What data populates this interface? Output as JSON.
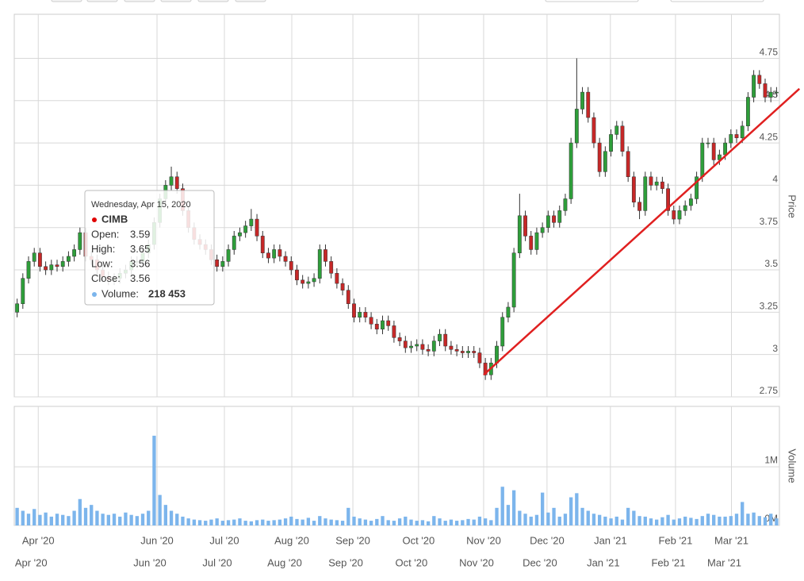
{
  "chart_data": {
    "type": "candlestick",
    "tooltip": {
      "date": "Wednesday, Apr 15, 2020",
      "name": "CIMB",
      "rows": [
        {
          "label": "Open:",
          "value": 3.59
        },
        {
          "label": "High:",
          "value": 3.65
        },
        {
          "label": "Low:",
          "value": 3.56
        },
        {
          "label": "Close:",
          "value": 3.56
        }
      ],
      "volume_label": "Volume:",
      "volume": {
        "value": 218453,
        "label": "218 453"
      }
    },
    "y_title": "Price",
    "y2_title": "Volume",
    "xlim": [
      -0.5,
      133.5
    ],
    "xticks": [
      {
        "value": 3.7,
        "label": "Apr '20"
      },
      {
        "value": 24.5,
        "label": "Jun '20"
      },
      {
        "value": 36.3,
        "label": "Jul '20"
      },
      {
        "value": 48.1,
        "label": "Aug '20"
      },
      {
        "value": 58.8,
        "label": "Sep '20"
      },
      {
        "value": 70.3,
        "label": "Oct '20"
      },
      {
        "value": 81.7,
        "label": "Nov '20"
      },
      {
        "value": 92.8,
        "label": "Dec '20"
      },
      {
        "value": 103.9,
        "label": "Jan '21"
      },
      {
        "value": 115.3,
        "label": "Feb '21"
      },
      {
        "value": 125.1,
        "label": "Mar '21"
      }
    ],
    "ylim": [
      2.75,
      5.01
    ],
    "yticks": [
      2.75,
      3,
      3.25,
      3.5,
      3.75,
      4,
      4.25,
      4.5,
      4.75
    ],
    "y2lim": [
      0,
      2030000
    ],
    "y2ticks": [
      {
        "value": 0,
        "label": "0M"
      },
      {
        "value": 1000000,
        "label": "1M"
      }
    ],
    "up_color": "#2e9e3a",
    "down_color": "#c62828",
    "volume_color": "#7cb5ec",
    "trend_color": "#e02020",
    "open": [
      3.25,
      3.3,
      3.45,
      3.55,
      3.6,
      3.52,
      3.5,
      3.53,
      3.52,
      3.55,
      3.58,
      3.62,
      3.72,
      3.58,
      3.56,
      3.5,
      3.46,
      3.44,
      3.45,
      3.48,
      3.5,
      3.55,
      3.55,
      3.6,
      3.65,
      3.78,
      3.92,
      4.0,
      4.05,
      3.98,
      3.85,
      3.75,
      3.68,
      3.65,
      3.62,
      3.56,
      3.52,
      3.55,
      3.62,
      3.7,
      3.72,
      3.76,
      3.8,
      3.7,
      3.6,
      3.57,
      3.62,
      3.58,
      3.55,
      3.5,
      3.44,
      3.42,
      3.43,
      3.45,
      3.62,
      3.55,
      3.48,
      3.42,
      3.38,
      3.3,
      3.22,
      3.25,
      3.22,
      3.18,
      3.15,
      3.2,
      3.17,
      3.1,
      3.08,
      3.04,
      3.05,
      3.06,
      3.03,
      3.02,
      3.08,
      3.12,
      3.05,
      3.03,
      3.02,
      3.01,
      3.02,
      3.01,
      2.95,
      2.88,
      2.95,
      3.05,
      3.22,
      3.28,
      3.6,
      3.82,
      3.7,
      3.62,
      3.72,
      3.75,
      3.82,
      3.78,
      3.85,
      3.92,
      4.25,
      4.45,
      4.55,
      4.4,
      4.25,
      4.08,
      4.2,
      4.3,
      4.35,
      4.2,
      4.05,
      3.9,
      3.85,
      4.05,
      4.0,
      4.02,
      3.98,
      3.85,
      3.8,
      3.85,
      3.88,
      3.92,
      4.05,
      4.25,
      4.25,
      4.15,
      4.18,
      4.25,
      4.3,
      4.28,
      4.35,
      4.52,
      4.65,
      4.6,
      4.52,
      4.55
    ],
    "high": [
      3.33,
      3.48,
      3.58,
      3.63,
      3.63,
      3.55,
      3.56,
      3.56,
      3.58,
      3.61,
      3.65,
      3.75,
      3.75,
      3.61,
      3.59,
      3.53,
      3.49,
      3.48,
      3.51,
      3.53,
      3.58,
      3.58,
      3.63,
      3.68,
      3.81,
      3.95,
      4.03,
      4.11,
      4.08,
      4.01,
      3.88,
      3.78,
      3.71,
      3.68,
      3.65,
      3.59,
      3.58,
      3.65,
      3.73,
      3.75,
      3.79,
      3.86,
      3.83,
      3.73,
      3.63,
      3.65,
      3.65,
      3.61,
      3.58,
      3.53,
      3.47,
      3.46,
      3.48,
      3.65,
      3.65,
      3.58,
      3.51,
      3.45,
      3.41,
      3.33,
      3.28,
      3.28,
      3.25,
      3.21,
      3.23,
      3.23,
      3.2,
      3.13,
      3.11,
      3.08,
      3.09,
      3.09,
      3.06,
      3.11,
      3.15,
      3.15,
      3.08,
      3.06,
      3.05,
      3.05,
      3.05,
      3.04,
      2.98,
      2.98,
      3.08,
      3.25,
      3.31,
      3.63,
      3.95,
      3.85,
      3.73,
      3.75,
      3.78,
      3.85,
      3.85,
      3.88,
      3.95,
      4.28,
      4.75,
      4.58,
      4.58,
      4.43,
      4.28,
      4.23,
      4.33,
      4.38,
      4.38,
      4.23,
      4.08,
      3.93,
      4.08,
      4.08,
      4.05,
      4.05,
      4.01,
      3.88,
      3.88,
      3.91,
      3.95,
      4.08,
      4.28,
      4.28,
      4.28,
      4.21,
      4.28,
      4.33,
      4.33,
      4.38,
      4.55,
      4.68,
      4.68,
      4.63,
      4.58,
      4.58
    ],
    "low": [
      3.22,
      3.27,
      3.42,
      3.52,
      3.49,
      3.47,
      3.47,
      3.49,
      3.49,
      3.52,
      3.55,
      3.59,
      3.55,
      3.53,
      3.47,
      3.43,
      3.41,
      3.41,
      3.42,
      3.45,
      3.47,
      3.52,
      3.52,
      3.57,
      3.62,
      3.75,
      3.89,
      3.97,
      3.95,
      3.82,
      3.72,
      3.65,
      3.62,
      3.59,
      3.53,
      3.49,
      3.49,
      3.52,
      3.59,
      3.67,
      3.69,
      3.73,
      3.67,
      3.57,
      3.54,
      3.54,
      3.55,
      3.52,
      3.47,
      3.41,
      3.39,
      3.39,
      3.4,
      3.42,
      3.52,
      3.45,
      3.39,
      3.35,
      3.27,
      3.19,
      3.19,
      3.19,
      3.15,
      3.12,
      3.12,
      3.14,
      3.07,
      3.05,
      3.01,
      3.01,
      3.02,
      3.0,
      2.99,
      2.99,
      3.05,
      3.02,
      3.0,
      2.99,
      2.98,
      2.98,
      2.98,
      2.92,
      2.85,
      2.85,
      2.92,
      3.02,
      3.19,
      3.25,
      3.57,
      3.67,
      3.59,
      3.59,
      3.69,
      3.72,
      3.75,
      3.75,
      3.82,
      3.89,
      4.22,
      4.42,
      4.37,
      4.22,
      4.05,
      4.05,
      4.17,
      4.27,
      4.17,
      4.02,
      3.87,
      3.8,
      3.82,
      3.97,
      3.97,
      3.95,
      3.82,
      3.77,
      3.77,
      3.82,
      3.85,
      3.89,
      4.02,
      4.22,
      4.12,
      4.12,
      4.15,
      4.22,
      4.25,
      4.25,
      4.32,
      4.49,
      4.57,
      4.49,
      4.49,
      4.52
    ],
    "close": [
      3.3,
      3.45,
      3.55,
      3.6,
      3.52,
      3.5,
      3.53,
      3.52,
      3.55,
      3.58,
      3.62,
      3.72,
      3.58,
      3.56,
      3.5,
      3.46,
      3.44,
      3.45,
      3.48,
      3.5,
      3.55,
      3.55,
      3.6,
      3.65,
      3.78,
      3.92,
      4.0,
      4.05,
      3.98,
      3.85,
      3.75,
      3.68,
      3.65,
      3.62,
      3.56,
      3.52,
      3.55,
      3.62,
      3.7,
      3.72,
      3.76,
      3.8,
      3.7,
      3.6,
      3.57,
      3.62,
      3.58,
      3.55,
      3.5,
      3.44,
      3.42,
      3.43,
      3.45,
      3.62,
      3.55,
      3.48,
      3.42,
      3.38,
      3.3,
      3.22,
      3.25,
      3.22,
      3.18,
      3.15,
      3.2,
      3.17,
      3.1,
      3.08,
      3.04,
      3.05,
      3.06,
      3.03,
      3.02,
      3.08,
      3.12,
      3.05,
      3.03,
      3.02,
      3.01,
      3.02,
      3.01,
      2.95,
      2.88,
      2.95,
      3.05,
      3.22,
      3.28,
      3.6,
      3.82,
      3.7,
      3.62,
      3.72,
      3.75,
      3.82,
      3.78,
      3.85,
      3.92,
      4.25,
      4.45,
      4.55,
      4.4,
      4.25,
      4.08,
      4.2,
      4.3,
      4.35,
      4.2,
      4.05,
      3.9,
      3.85,
      4.05,
      4.0,
      4.02,
      3.98,
      3.85,
      3.8,
      3.85,
      3.88,
      3.92,
      4.05,
      4.25,
      4.25,
      4.15,
      4.18,
      4.25,
      4.3,
      4.28,
      4.35,
      4.52,
      4.65,
      4.6,
      4.52,
      4.55,
      4.55
    ],
    "volume": [
      300000,
      250000,
      200000,
      280000,
      180000,
      220000,
      150000,
      200000,
      180000,
      160000,
      250000,
      450000,
      300000,
      350000,
      250000,
      200000,
      180000,
      200000,
      150000,
      220000,
      180000,
      160000,
      200000,
      250000,
      1530000,
      520000,
      350000,
      250000,
      200000,
      150000,
      120000,
      100000,
      90000,
      80000,
      100000,
      120000,
      80000,
      90000,
      100000,
      120000,
      80000,
      70000,
      90000,
      100000,
      80000,
      90000,
      100000,
      120000,
      150000,
      110000,
      100000,
      130000,
      80000,
      160000,
      120000,
      100000,
      90000,
      80000,
      300000,
      150000,
      120000,
      100000,
      80000,
      110000,
      160000,
      90000,
      80000,
      120000,
      150000,
      100000,
      80000,
      90000,
      70000,
      160000,
      120000,
      80000,
      100000,
      80000,
      90000,
      110000,
      100000,
      150000,
      120000,
      90000,
      300000,
      660000,
      350000,
      600000,
      250000,
      200000,
      150000,
      180000,
      560000,
      220000,
      300000,
      150000,
      200000,
      480000,
      550000,
      300000,
      250000,
      200000,
      180000,
      150000,
      120000,
      150000,
      100000,
      300000,
      250000,
      160000,
      150000,
      120000,
      100000,
      140000,
      180000,
      100000,
      120000,
      150000,
      130000,
      110000,
      160000,
      200000,
      180000,
      150000,
      150000,
      160000,
      200000,
      400000,
      200000,
      220000,
      160000,
      140000,
      200000,
      120000
    ],
    "trendline": {
      "x": [
        81.7,
        137.0
      ],
      "y": [
        2.88,
        4.57
      ]
    }
  }
}
